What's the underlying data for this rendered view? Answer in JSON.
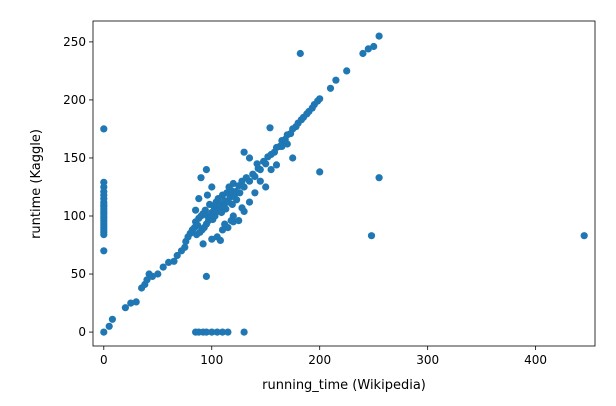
{
  "chart_data": {
    "type": "scatter",
    "title": "",
    "xlabel": "running_time (Wikipedia)",
    "ylabel": "runtime (Kaggle)",
    "xlim": [
      -10,
      455
    ],
    "ylim": [
      -12,
      268
    ],
    "xticks": [
      0,
      100,
      200,
      300,
      400
    ],
    "yticks": [
      0,
      50,
      100,
      150,
      200,
      250
    ],
    "grid": false,
    "legend": false,
    "color": "#1f77b4",
    "series": [
      {
        "points": [
          [
            0,
            175
          ],
          [
            0,
            129
          ],
          [
            0,
            125
          ],
          [
            0,
            121
          ],
          [
            0,
            118
          ],
          [
            0,
            115
          ],
          [
            0,
            112
          ],
          [
            0,
            110
          ],
          [
            0,
            108
          ],
          [
            0,
            106
          ],
          [
            0,
            104
          ],
          [
            0,
            102
          ],
          [
            0,
            100
          ],
          [
            0,
            98
          ],
          [
            0,
            96
          ],
          [
            0,
            94
          ],
          [
            0,
            92
          ],
          [
            0,
            90
          ],
          [
            0,
            88
          ],
          [
            0,
            86
          ],
          [
            0,
            84
          ],
          [
            0,
            70
          ],
          [
            0,
            0
          ],
          [
            5,
            5
          ],
          [
            8,
            11
          ],
          [
            20,
            21
          ],
          [
            25,
            25
          ],
          [
            30,
            26
          ],
          [
            35,
            38
          ],
          [
            38,
            41
          ],
          [
            40,
            45
          ],
          [
            42,
            50
          ],
          [
            45,
            48
          ],
          [
            50,
            50
          ],
          [
            55,
            56
          ],
          [
            60,
            60
          ],
          [
            65,
            61
          ],
          [
            68,
            66
          ],
          [
            72,
            70
          ],
          [
            75,
            73
          ],
          [
            76,
            78
          ],
          [
            78,
            82
          ],
          [
            80,
            85
          ],
          [
            82,
            88
          ],
          [
            84,
            90
          ],
          [
            85,
            95
          ],
          [
            86,
            84
          ],
          [
            87,
            92
          ],
          [
            88,
            98
          ],
          [
            89,
            86
          ],
          [
            90,
            100
          ],
          [
            91,
            88
          ],
          [
            92,
            102
          ],
          [
            93,
            90
          ],
          [
            94,
            105
          ],
          [
            95,
            93
          ],
          [
            96,
            100
          ],
          [
            97,
            96
          ],
          [
            98,
            110
          ],
          [
            99,
            99
          ],
          [
            100,
            103
          ],
          [
            101,
            97
          ],
          [
            102,
            108
          ],
          [
            103,
            100
          ],
          [
            104,
            112
          ],
          [
            105,
            104
          ],
          [
            106,
            115
          ],
          [
            107,
            106
          ],
          [
            108,
            110
          ],
          [
            109,
            103
          ],
          [
            110,
            118
          ],
          [
            111,
            108
          ],
          [
            112,
            113
          ],
          [
            113,
            106
          ],
          [
            114,
            120
          ],
          [
            115,
            112
          ],
          [
            116,
            125
          ],
          [
            117,
            116
          ],
          [
            118,
            122
          ],
          [
            119,
            110
          ],
          [
            120,
            128
          ],
          [
            121,
            118
          ],
          [
            122,
            121
          ],
          [
            123,
            114
          ],
          [
            125,
            126
          ],
          [
            126,
            120
          ],
          [
            128,
            130
          ],
          [
            130,
            125
          ],
          [
            132,
            133
          ],
          [
            135,
            130
          ],
          [
            138,
            136
          ],
          [
            140,
            134
          ],
          [
            143,
            141
          ],
          [
            145,
            140
          ],
          [
            148,
            147
          ],
          [
            150,
            145
          ],
          [
            152,
            151
          ],
          [
            155,
            153
          ],
          [
            158,
            155
          ],
          [
            160,
            159
          ],
          [
            163,
            160
          ],
          [
            165,
            165
          ],
          [
            168,
            166
          ],
          [
            170,
            170
          ],
          [
            173,
            171
          ],
          [
            175,
            175
          ],
          [
            178,
            177
          ],
          [
            180,
            180
          ],
          [
            183,
            183
          ],
          [
            185,
            185
          ],
          [
            188,
            188
          ],
          [
            190,
            190
          ],
          [
            193,
            193
          ],
          [
            195,
            196
          ],
          [
            198,
            199
          ],
          [
            200,
            201
          ],
          [
            210,
            210
          ],
          [
            215,
            217
          ],
          [
            225,
            225
          ],
          [
            240,
            240
          ],
          [
            245,
            244
          ],
          [
            250,
            246
          ],
          [
            255,
            255
          ],
          [
            95,
            140
          ],
          [
            90,
            133
          ],
          [
            100,
            125
          ],
          [
            88,
            115
          ],
          [
            96,
            118
          ],
          [
            85,
            105
          ],
          [
            110,
            88
          ],
          [
            115,
            90
          ],
          [
            120,
            95
          ],
          [
            105,
            82
          ],
          [
            100,
            80
          ],
          [
            92,
            76
          ],
          [
            108,
            79
          ],
          [
            125,
            96
          ],
          [
            130,
            104
          ],
          [
            135,
            112
          ],
          [
            140,
            120
          ],
          [
            150,
            125
          ],
          [
            155,
            140
          ],
          [
            135,
            150
          ],
          [
            130,
            155
          ],
          [
            142,
            145
          ],
          [
            165,
            160
          ],
          [
            170,
            162
          ],
          [
            154,
            176
          ],
          [
            175,
            150
          ],
          [
            160,
            144
          ],
          [
            145,
            130
          ],
          [
            120,
            100
          ],
          [
            112,
            93
          ],
          [
            118,
            96
          ],
          [
            128,
            107
          ],
          [
            182,
            240
          ],
          [
            200,
            138
          ],
          [
            255,
            133
          ],
          [
            248,
            83
          ],
          [
            445,
            83
          ],
          [
            95,
            48
          ],
          [
            85,
            0
          ],
          [
            88,
            0
          ],
          [
            92,
            0
          ],
          [
            95,
            0
          ],
          [
            100,
            0
          ],
          [
            105,
            0
          ],
          [
            110,
            0
          ],
          [
            115,
            0
          ],
          [
            130,
            0
          ]
        ]
      }
    ]
  }
}
